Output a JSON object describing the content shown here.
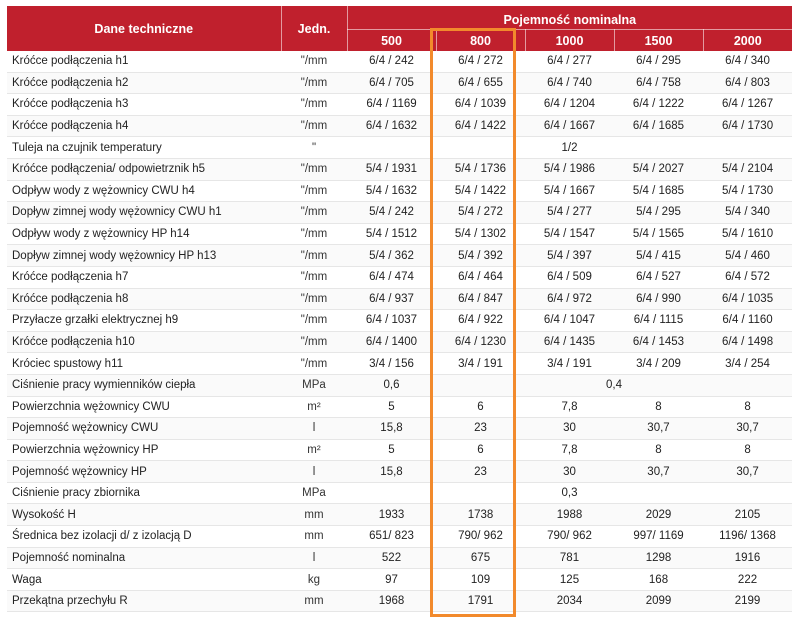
{
  "header": {
    "name_label": "Dane techniczne",
    "unit_label": "Jedn.",
    "group_label": "Pojemność nominalna",
    "capacities": [
      "500",
      "800",
      "1000",
      "1500",
      "2000"
    ]
  },
  "colors": {
    "header_bg": "#c0202d",
    "header_text": "#ffffff",
    "highlight": "#f28a2c"
  },
  "highlighted_column": "800",
  "rows": [
    {
      "name": "Króćce podłączenia h1",
      "unit": "\"/mm",
      "values": [
        "6/4 / 242",
        "6/4 / 272",
        "6/4 / 277",
        "6/4 / 295",
        "6/4 / 340"
      ]
    },
    {
      "name": "Króćce podłączenia h2",
      "unit": "\"/mm",
      "values": [
        "6/4 / 705",
        "6/4 / 655",
        "6/4 / 740",
        "6/4 / 758",
        "6/4 / 803"
      ]
    },
    {
      "name": "Króćce podłączenia h3",
      "unit": "\"/mm",
      "values": [
        "6/4 / 1169",
        "6/4 / 1039",
        "6/4 / 1204",
        "6/4 / 1222",
        "6/4 / 1267"
      ]
    },
    {
      "name": "Króćce podłączenia h4",
      "unit": "\"/mm",
      "values": [
        "6/4 / 1632",
        "6/4 / 1422",
        "6/4 / 1667",
        "6/4 / 1685",
        "6/4 / 1730"
      ]
    },
    {
      "name": "Tuleja na czujnik temperatury",
      "unit": "\"",
      "merged": "1/2"
    },
    {
      "name": "Króćce podłączenia/ odpowietrznik h5",
      "unit": "\"/mm",
      "values": [
        "5/4 / 1931",
        "5/4 / 1736",
        "5/4 / 1986",
        "5/4 / 2027",
        "5/4 / 2104"
      ]
    },
    {
      "name": "Odpływ wody z wężownicy CWU h4",
      "unit": "\"/mm",
      "values": [
        "5/4 / 1632",
        "5/4 / 1422",
        "5/4 / 1667",
        "5/4 / 1685",
        "5/4 / 1730"
      ]
    },
    {
      "name": "Dopływ zimnej wody wężownicy CWU h1",
      "unit": "\"/mm",
      "values": [
        "5/4 / 242",
        "5/4 / 272",
        "5/4 / 277",
        "5/4 / 295",
        "5/4 / 340"
      ]
    },
    {
      "name": "Odpływ wody z wężownicy HP h14",
      "unit": "\"/mm",
      "values": [
        "5/4 / 1512",
        "5/4 / 1302",
        "5/4 / 1547",
        "5/4 / 1565",
        "5/4 / 1610"
      ]
    },
    {
      "name": "Dopływ zimnej wody wężownicy HP h13",
      "unit": "\"/mm",
      "values": [
        "5/4 / 362",
        "5/4 / 392",
        "5/4 / 397",
        "5/4 / 415",
        "5/4 / 460"
      ]
    },
    {
      "name": "Króćce podłączenia h7",
      "unit": "\"/mm",
      "values": [
        "6/4 / 474",
        "6/4 / 464",
        "6/4 / 509",
        "6/4 / 527",
        "6/4 / 572"
      ]
    },
    {
      "name": "Króćce podłączenia h8",
      "unit": "\"/mm",
      "values": [
        "6/4 / 937",
        "6/4 / 847",
        "6/4 / 972",
        "6/4 / 990",
        "6/4 / 1035"
      ]
    },
    {
      "name": "Przyłacze grzałki elektrycznej h9",
      "unit": "\"/mm",
      "values": [
        "6/4 / 1037",
        "6/4 / 922",
        "6/4 / 1047",
        "6/4 / 1115",
        "6/4 / 1160"
      ]
    },
    {
      "name": "Króćce podłączenia h10",
      "unit": "\"/mm",
      "values": [
        "6/4 / 1400",
        "6/4 / 1230",
        "6/4 / 1435",
        "6/4 / 1453",
        "6/4 / 1498"
      ]
    },
    {
      "name": "Króciec spustowy h11",
      "unit": "\"/mm",
      "values": [
        "3/4 / 156",
        "3/4 / 191",
        "3/4 / 191",
        "3/4 / 209",
        "3/4 / 254"
      ]
    },
    {
      "name": "Ciśnienie pracy wymienników ciepła",
      "unit": "MPa",
      "first": "0,6",
      "rest": "0,4"
    },
    {
      "name": "Powierzchnia wężownicy CWU",
      "unit": "m²",
      "values": [
        "5",
        "6",
        "7,8",
        "8",
        "8"
      ]
    },
    {
      "name": "Pojemność wężownicy CWU",
      "unit": "l",
      "values": [
        "15,8",
        "23",
        "30",
        "30,7",
        "30,7"
      ]
    },
    {
      "name": "Powierzchnia wężownicy HP",
      "unit": "m²",
      "values": [
        "5",
        "6",
        "7,8",
        "8",
        "8"
      ]
    },
    {
      "name": "Pojemność wężownicy HP",
      "unit": "l",
      "values": [
        "15,8",
        "23",
        "30",
        "30,7",
        "30,7"
      ]
    },
    {
      "name": "Ciśnienie pracy zbiornika",
      "unit": "MPa",
      "merged": "0,3"
    },
    {
      "name": "Wysokość H",
      "unit": "mm",
      "values": [
        "1933",
        "1738",
        "1988",
        "2029",
        "2105"
      ]
    },
    {
      "name": "Średnica bez izolacji d/ z izolacją D",
      "unit": "mm",
      "values": [
        "651/ 823",
        "790/ 962",
        "790/ 962",
        "997/ 1169",
        "1196/ 1368"
      ]
    },
    {
      "name": "Pojemność nominalna",
      "unit": "l",
      "values": [
        "522",
        "675",
        "781",
        "1298",
        "1916"
      ]
    },
    {
      "name": "Waga",
      "unit": "kg",
      "values": [
        "97",
        "109",
        "125",
        "168",
        "222"
      ]
    },
    {
      "name": "Przekątna przechyłu R",
      "unit": "mm",
      "values": [
        "1968",
        "1791",
        "2034",
        "2099",
        "2199"
      ]
    }
  ]
}
